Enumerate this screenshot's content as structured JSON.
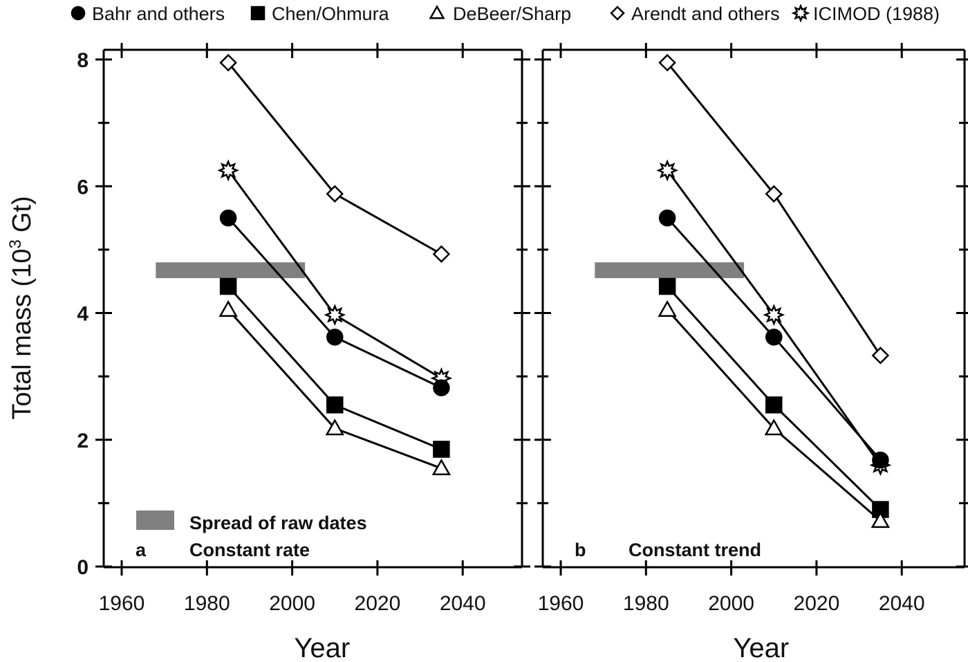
{
  "legend": {
    "entries": [
      {
        "name": "Bahr and others",
        "marker": "circle",
        "fill": "#000000"
      },
      {
        "name": "Chen/Ohmura",
        "marker": "square",
        "fill": "#000000"
      },
      {
        "name": "DeBeer/Sharp",
        "marker": "triangle",
        "fill": "#ffffff"
      },
      {
        "name": "Arendt and others",
        "marker": "diamond",
        "fill": "#ffffff"
      },
      {
        "name": "ICIMOD (1988)",
        "marker": "star",
        "fill": "#ffffff"
      }
    ]
  },
  "ylabel_text": "Total mass (10",
  "ylabel_sup": "3",
  "ylabel_unit": "Gt)",
  "spread_label": "Spread of raw dates",
  "chart_data": [
    {
      "type": "line",
      "panel_letter": "a",
      "panel_title": "Constant rate",
      "xlabel": "Year",
      "ylabel": "Total mass (10^3 Gt)",
      "xlim": [
        1960,
        2050
      ],
      "ylim": [
        0,
        8
      ],
      "xticks": [
        1960,
        1980,
        2000,
        2020,
        2040
      ],
      "yticks": [
        0,
        2,
        4,
        6,
        8
      ],
      "spread_of_raw_dates": {
        "x": [
          1968,
          2003
        ],
        "y": [
          4.55,
          4.8
        ],
        "color": "#808080"
      },
      "series": [
        {
          "name": "Arendt and others",
          "marker": "diamond",
          "x": [
            1985,
            2010,
            2035
          ],
          "y": [
            7.95,
            5.88,
            4.93
          ]
        },
        {
          "name": "ICIMOD (1988)",
          "marker": "star",
          "x": [
            1985,
            2010,
            2035
          ],
          "y": [
            6.25,
            3.97,
            2.97
          ]
        },
        {
          "name": "Bahr and others",
          "marker": "circle",
          "x": [
            1985,
            2010,
            2035
          ],
          "y": [
            5.5,
            3.62,
            2.82
          ]
        },
        {
          "name": "Chen/Ohmura",
          "marker": "square",
          "x": [
            1985,
            2010,
            2035
          ],
          "y": [
            4.42,
            2.55,
            1.85
          ]
        },
        {
          "name": "DeBeer/Sharp",
          "marker": "triangle",
          "x": [
            1985,
            2010,
            2035
          ],
          "y": [
            4.05,
            2.18,
            1.55
          ]
        }
      ]
    },
    {
      "type": "line",
      "panel_letter": "b",
      "panel_title": "Constant trend",
      "xlabel": "Year",
      "ylabel": "Total mass (10^3 Gt)",
      "xlim": [
        1960,
        2050
      ],
      "ylim": [
        0,
        8
      ],
      "xticks": [
        1960,
        1980,
        2000,
        2020,
        2040
      ],
      "yticks": [
        0,
        2,
        4,
        6,
        8
      ],
      "spread_of_raw_dates": {
        "x": [
          1968,
          2003
        ],
        "y": [
          4.55,
          4.8
        ],
        "color": "#808080"
      },
      "series": [
        {
          "name": "Arendt and others",
          "marker": "diamond",
          "x": [
            1985,
            2010,
            2035
          ],
          "y": [
            7.95,
            5.88,
            3.33
          ]
        },
        {
          "name": "ICIMOD (1988)",
          "marker": "star",
          "x": [
            1985,
            2010,
            2035
          ],
          "y": [
            6.25,
            3.97,
            1.6
          ]
        },
        {
          "name": "Bahr and others",
          "marker": "circle",
          "x": [
            1985,
            2010,
            2035
          ],
          "y": [
            5.5,
            3.62,
            1.68
          ]
        },
        {
          "name": "Chen/Ohmura",
          "marker": "square",
          "x": [
            1985,
            2010,
            2035
          ],
          "y": [
            4.42,
            2.55,
            0.9
          ]
        },
        {
          "name": "DeBeer/Sharp",
          "marker": "triangle",
          "x": [
            1985,
            2010,
            2035
          ],
          "y": [
            4.05,
            2.18,
            0.72
          ]
        }
      ]
    }
  ]
}
